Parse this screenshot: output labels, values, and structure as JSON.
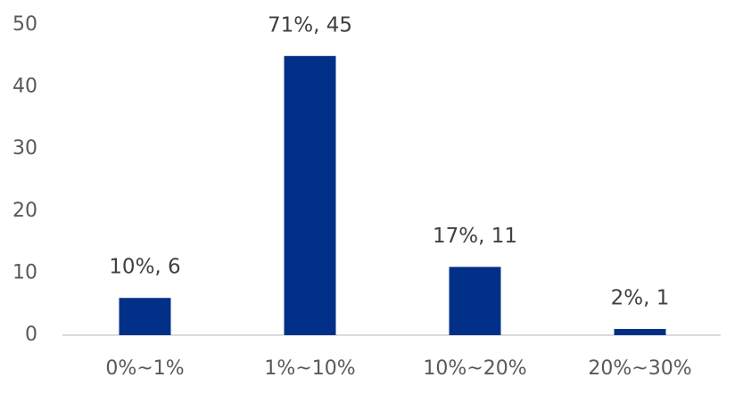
{
  "chart_data": {
    "type": "bar",
    "categories": [
      "0%~1%",
      "1%~10%",
      "10%~20%",
      "20%~30%"
    ],
    "values": [
      6,
      45,
      11,
      1
    ],
    "value_labels": [
      "10%, 6",
      "71%, 45",
      "17%, 11",
      "2%, 1"
    ],
    "color": "#023088",
    "ylim": [
      0,
      50
    ],
    "yticks": [
      0,
      10,
      20,
      30,
      40,
      50
    ],
    "grid": false
  }
}
